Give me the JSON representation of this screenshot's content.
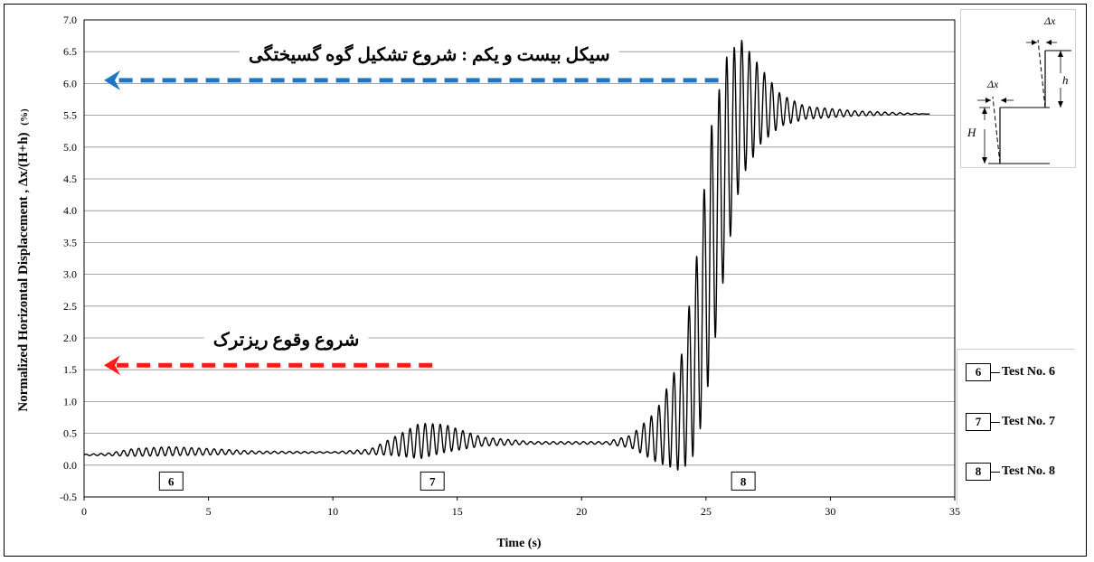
{
  "chart_data": {
    "type": "line",
    "xlabel": "Time (s)",
    "ylabel_main": "Normalized Horizontal Displacement , Δx/(H+h)",
    "ylabel_unit": "(%)",
    "xlim": [
      0,
      35
    ],
    "ylim": [
      -0.5,
      7.0
    ],
    "xticks": [
      "0",
      "5",
      "10",
      "15",
      "20",
      "25",
      "30",
      "35"
    ],
    "yticks": [
      "-0.5",
      "0.0",
      "0.5",
      "1.0",
      "1.5",
      "2.0",
      "2.5",
      "3.0",
      "3.5",
      "4.0",
      "4.5",
      "5.0",
      "5.5",
      "6.0",
      "6.5",
      "7.0"
    ],
    "grid": "horizontal",
    "series": [
      {
        "color": "#000000",
        "envelope": [
          {
            "t": 0.0,
            "mean": 0.16,
            "amp": 0.01
          },
          {
            "t": 1.0,
            "mean": 0.17,
            "amp": 0.02
          },
          {
            "t": 2.0,
            "mean": 0.2,
            "amp": 0.06
          },
          {
            "t": 3.5,
            "mean": 0.22,
            "amp": 0.07
          },
          {
            "t": 5.0,
            "mean": 0.21,
            "amp": 0.05
          },
          {
            "t": 7.0,
            "mean": 0.2,
            "amp": 0.02
          },
          {
            "t": 10.0,
            "mean": 0.2,
            "amp": 0.01
          },
          {
            "t": 11.5,
            "mean": 0.21,
            "amp": 0.04
          },
          {
            "t": 12.5,
            "mean": 0.3,
            "amp": 0.15
          },
          {
            "t": 13.5,
            "mean": 0.38,
            "amp": 0.28
          },
          {
            "t": 14.5,
            "mean": 0.42,
            "amp": 0.22
          },
          {
            "t": 16.0,
            "mean": 0.37,
            "amp": 0.07
          },
          {
            "t": 18.0,
            "mean": 0.35,
            "amp": 0.02
          },
          {
            "t": 21.0,
            "mean": 0.35,
            "amp": 0.02
          },
          {
            "t": 22.0,
            "mean": 0.37,
            "amp": 0.1
          },
          {
            "t": 23.0,
            "mean": 0.45,
            "amp": 0.4
          },
          {
            "t": 24.0,
            "mean": 0.8,
            "amp": 0.9
          },
          {
            "t": 24.6,
            "mean": 1.7,
            "amp": 1.5
          },
          {
            "t": 25.2,
            "mean": 3.4,
            "amp": 1.9
          },
          {
            "t": 25.8,
            "mean": 4.8,
            "amp": 1.6
          },
          {
            "t": 26.4,
            "mean": 5.6,
            "amp": 1.1
          },
          {
            "t": 27.2,
            "mean": 5.65,
            "amp": 0.6
          },
          {
            "t": 28.0,
            "mean": 5.58,
            "amp": 0.25
          },
          {
            "t": 29.0,
            "mean": 5.54,
            "amp": 0.1
          },
          {
            "t": 31.0,
            "mean": 5.53,
            "amp": 0.04
          },
          {
            "t": 34.0,
            "mean": 5.52,
            "amp": 0.0
          }
        ]
      }
    ],
    "annotations": [
      {
        "text": "سیکل بیست و یکم : شروع تشکیل گوه گسیختگی",
        "y": 6.05,
        "color": "#1f77c4",
        "arrow_x_start": 25.5,
        "arrow_x_end": 0.8
      },
      {
        "text": "شروع وقوع ریزترک",
        "y": 1.57,
        "color": "#ff1a1a",
        "arrow_x_start": 14.0,
        "arrow_x_end": 0.8
      }
    ],
    "test_markers": [
      {
        "label": "6",
        "t": 3.5
      },
      {
        "label": "7",
        "t": 14.0
      },
      {
        "label": "8",
        "t": 26.5
      }
    ],
    "legend": [
      {
        "num": "6",
        "label": "Test No. 6"
      },
      {
        "num": "7",
        "label": "Test No. 7"
      },
      {
        "num": "8",
        "label": "Test No. 8"
      }
    ],
    "inset": {
      "dx1": "Δx",
      "dx2": "Δx",
      "h": "h",
      "H": "H"
    }
  }
}
